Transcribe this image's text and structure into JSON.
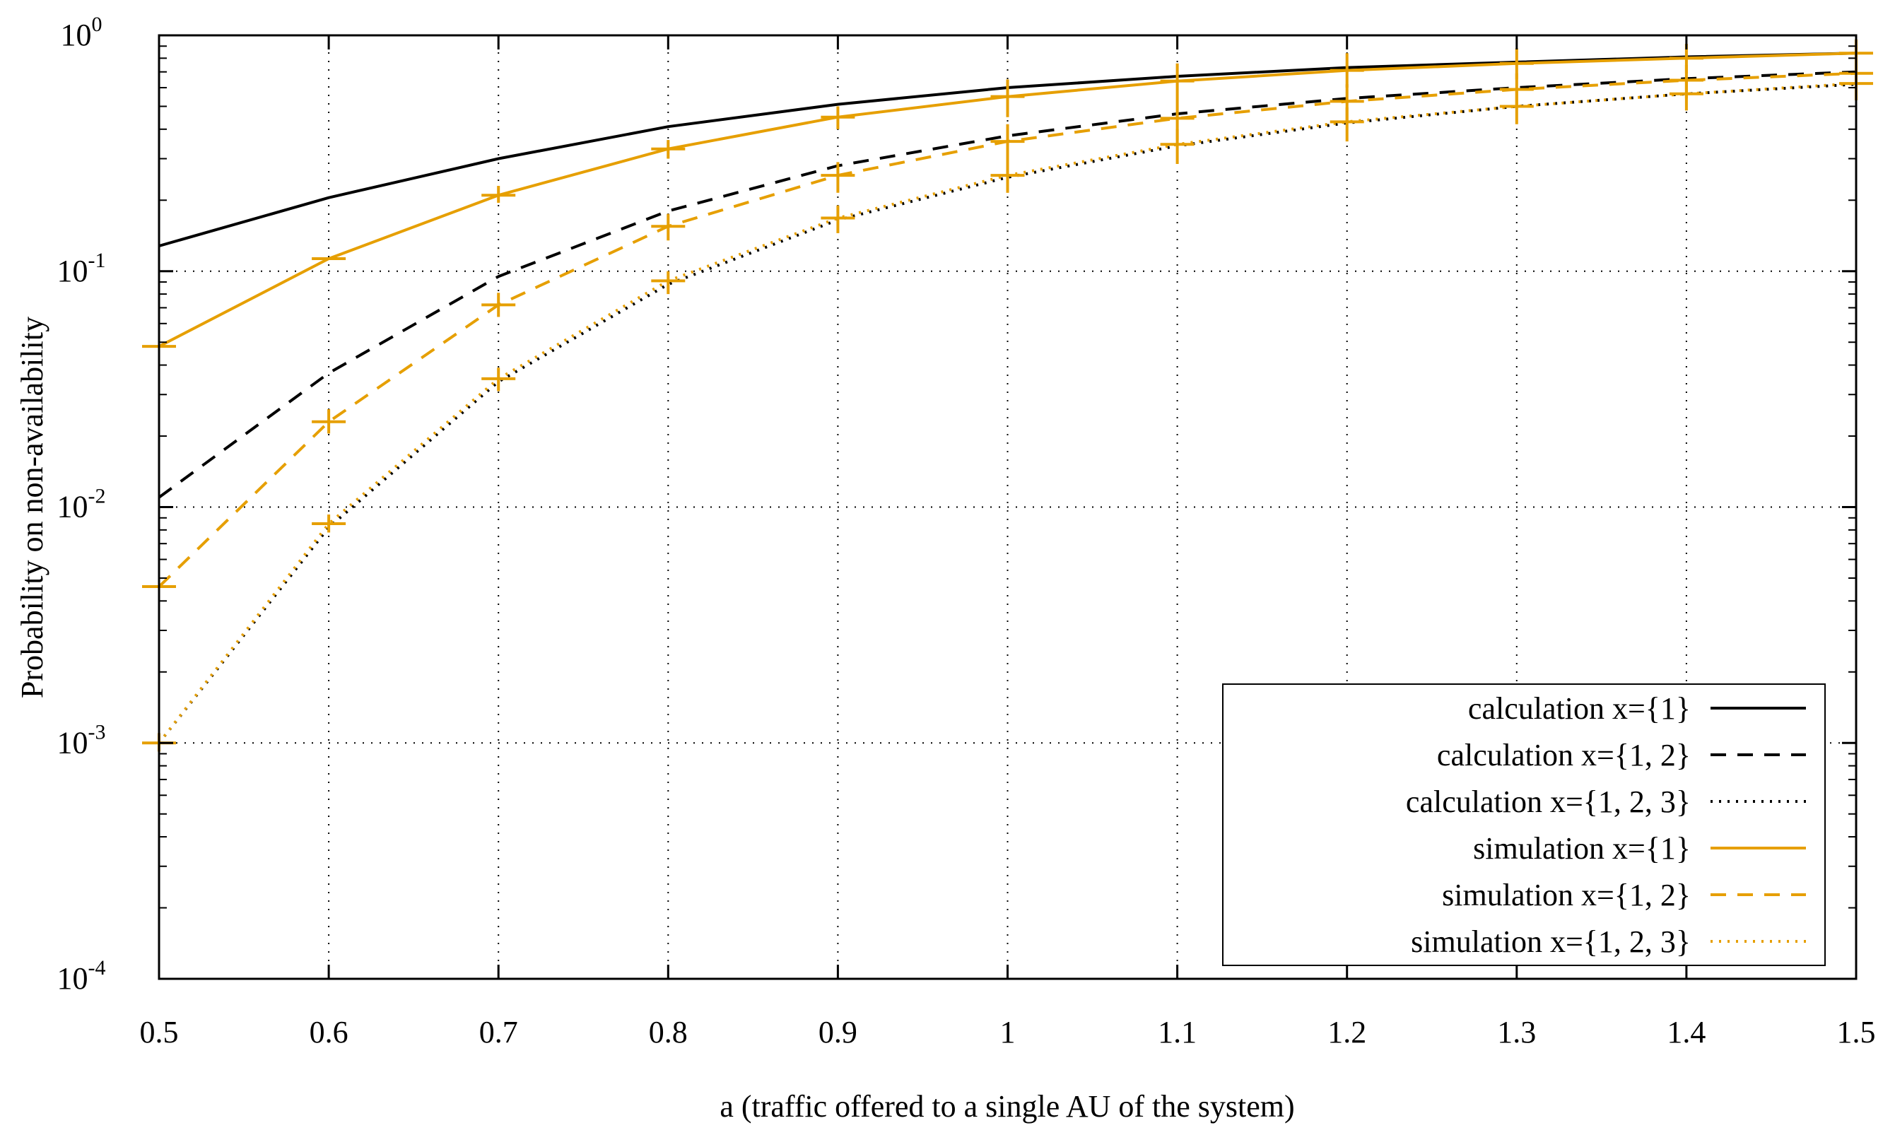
{
  "chart_data": {
    "type": "line",
    "title": "",
    "xlabel": "a (traffic offered to a single AU of the system)",
    "ylabel": "Probability on non-availability",
    "xlim": [
      0.5,
      1.5
    ],
    "ylim": [
      0.0001,
      1
    ],
    "yscale": "log",
    "grid": true,
    "legend_position": "bottom-right",
    "x_ticks": [
      "0.5",
      "0.6",
      "0.7",
      "0.8",
      "0.9",
      "1",
      "1.1",
      "1.2",
      "1.3",
      "1.4",
      "1.5"
    ],
    "y_ticks": [
      {
        "mant": "10",
        "exp": "0",
        "value": 1
      },
      {
        "mant": "10",
        "exp": "-1",
        "value": 0.1
      },
      {
        "mant": "10",
        "exp": "-2",
        "value": 0.01
      },
      {
        "mant": "10",
        "exp": "-3",
        "value": 0.001
      },
      {
        "mant": "10",
        "exp": "-4",
        "value": 0.0001
      }
    ],
    "x": [
      0.5,
      0.6,
      0.7,
      0.8,
      0.9,
      1.0,
      1.1,
      1.2,
      1.3,
      1.4,
      1.5
    ],
    "series": [
      {
        "name": "calculation  x={1}",
        "color": "#000000",
        "dash": "solid",
        "markers": false,
        "values": [
          0.128,
          0.205,
          0.3,
          0.41,
          0.51,
          0.6,
          0.67,
          0.73,
          0.77,
          0.81,
          0.84
        ]
      },
      {
        "name": "calculation  x={1, 2}",
        "color": "#000000",
        "dash": "dashed",
        "markers": false,
        "values": [
          0.011,
          0.037,
          0.095,
          0.18,
          0.28,
          0.375,
          0.465,
          0.54,
          0.6,
          0.655,
          0.7
        ]
      },
      {
        "name": "calculation  x={1, 2, 3}",
        "color": "#000000",
        "dash": "dotted",
        "markers": false,
        "values": [
          0.001,
          0.0082,
          0.034,
          0.088,
          0.165,
          0.25,
          0.34,
          0.425,
          0.5,
          0.565,
          0.62
        ]
      },
      {
        "name": "simulation  x={1}",
        "color": "#e69f00",
        "dash": "solid",
        "markers": true,
        "values": [
          0.048,
          0.113,
          0.21,
          0.33,
          0.45,
          0.55,
          0.64,
          0.71,
          0.76,
          0.8,
          0.84
        ],
        "err_low": [
          0.048,
          0.113,
          0.195,
          0.3,
          0.4,
          0.45,
          0.53,
          0.6,
          0.65,
          0.69,
          0.74
        ],
        "err_high": [
          0.048,
          0.113,
          0.23,
          0.36,
          0.5,
          0.65,
          0.76,
          0.84,
          0.88,
          0.92,
          0.96
        ]
      },
      {
        "name": "simulation  x={1, 2}",
        "color": "#e69f00",
        "dash": "dashed",
        "markers": true,
        "values": [
          0.0046,
          0.023,
          0.072,
          0.155,
          0.255,
          0.355,
          0.445,
          0.525,
          0.59,
          0.645,
          0.69
        ],
        "err_low": [
          0.0046,
          0.0205,
          0.064,
          0.135,
          0.215,
          0.29,
          0.36,
          0.43,
          0.49,
          0.54,
          0.59
        ],
        "err_high": [
          0.0046,
          0.026,
          0.081,
          0.175,
          0.29,
          0.42,
          0.53,
          0.62,
          0.69,
          0.75,
          0.8
        ]
      },
      {
        "name": "simulation  x={1, 2, 3}",
        "color": "#e69f00",
        "dash": "dotted",
        "markers": true,
        "values": [
          0.001,
          0.0085,
          0.035,
          0.091,
          0.168,
          0.255,
          0.345,
          0.43,
          0.5,
          0.565,
          0.625
        ],
        "err_low": [
          0.00092,
          0.0078,
          0.031,
          0.08,
          0.145,
          0.215,
          0.285,
          0.355,
          0.42,
          0.48,
          0.53
        ],
        "err_high": [
          0.0011,
          0.0093,
          0.039,
          0.1,
          0.19,
          0.295,
          0.4,
          0.495,
          0.58,
          0.65,
          0.71
        ]
      }
    ]
  }
}
